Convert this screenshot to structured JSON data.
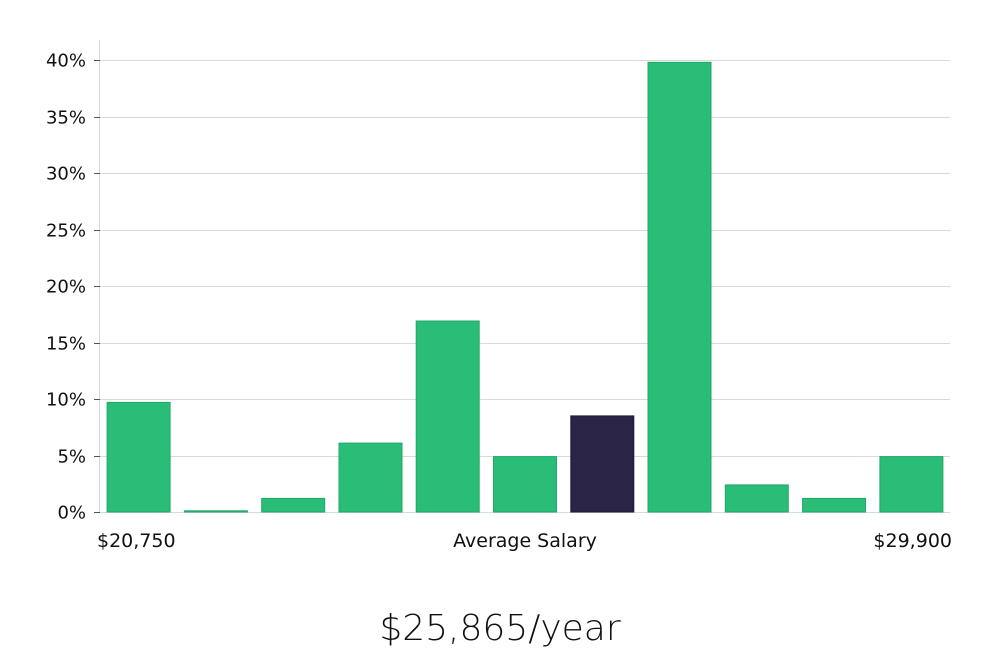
{
  "chart_data": {
    "type": "bar",
    "title": "",
    "xlabel": "Average Salary",
    "ylabel": "",
    "x_range_labels": {
      "min": "$20,750",
      "max": "$29,900"
    },
    "ylim": [
      0,
      42
    ],
    "yticks": [
      0,
      5,
      10,
      15,
      20,
      25,
      30,
      35,
      40
    ],
    "ytick_suffix": "%",
    "values": [
      9.7,
      0.1,
      1.2,
      6.1,
      16.9,
      4.9,
      8.5,
      39.8,
      2.4,
      1.2,
      4.9
    ],
    "highlight_index": 6,
    "colors": {
      "bar": "#2abd77",
      "highlight": "#2a2547",
      "grid": "#d9d9d9"
    },
    "grid": true
  },
  "summary": {
    "salary_text": "$25,865/year"
  }
}
